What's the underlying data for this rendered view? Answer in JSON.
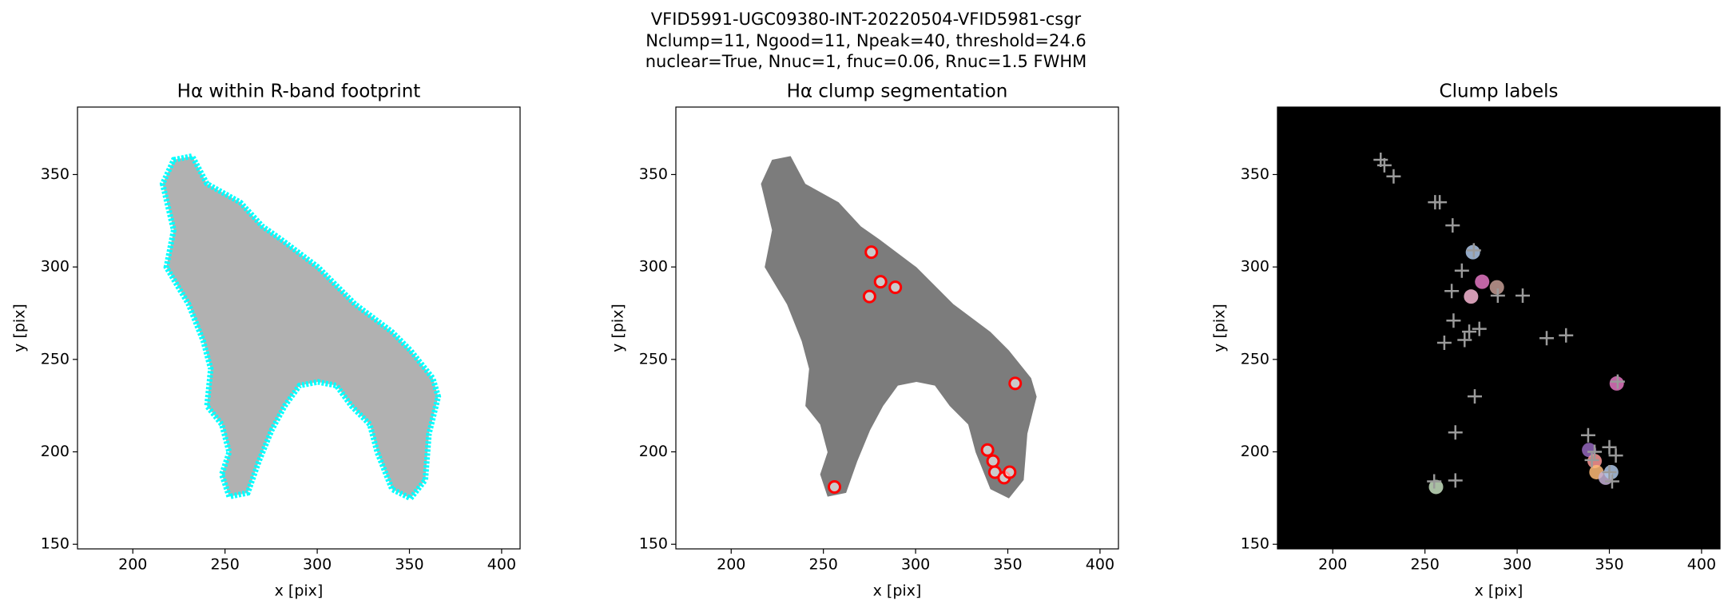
{
  "title": [
    "VFID5991-UGC09380-INT-20220504-VFID5981-csgr",
    "Nclump=11, Ngood=11, Npeak=40, threshold=24.6",
    "nuclear=True, Nnuc=1, fnuc=0.06, Rnuc=1.5 FWHM"
  ],
  "chart_data": [
    {
      "type": "image",
      "title": "Hα within R-band footprint",
      "xlabel": "x [pix]",
      "ylabel": "y [pix]",
      "xlim": [
        170,
        410
      ],
      "ylim": [
        147.5,
        386.5
      ],
      "xticks": [
        200,
        250,
        300,
        350,
        400
      ],
      "yticks": [
        150,
        200,
        250,
        300,
        350
      ],
      "image_color": "#a8a8a8",
      "footprint_color": "#00ffff",
      "background": "#ffffff"
    },
    {
      "type": "scatter",
      "title": "Hα clump segmentation",
      "xlabel": "x [pix]",
      "ylabel": "y [pix]",
      "xlim": [
        170,
        410
      ],
      "ylim": [
        147.5,
        386.5
      ],
      "xticks": [
        200,
        250,
        300,
        350,
        400
      ],
      "yticks": [
        150,
        200,
        250,
        300,
        350
      ],
      "image_color": "#6e6e6e",
      "background": "#ffffff",
      "marker_color": "#ff0000",
      "x": [
        276,
        281,
        289,
        275,
        354,
        256,
        339,
        342,
        343,
        348,
        351
      ],
      "y": [
        308,
        292,
        289,
        284,
        237,
        181,
        201,
        195,
        189,
        186,
        189
      ]
    },
    {
      "type": "labels",
      "title": "Clump labels",
      "xlabel": "x [pix]",
      "ylabel": "y [pix]",
      "xlim": [
        170,
        410
      ],
      "ylim": [
        147.5,
        386.5
      ],
      "xticks": [
        200,
        250,
        300,
        350,
        400
      ],
      "yticks": [
        150,
        200,
        250,
        300,
        350
      ],
      "background": "#000000",
      "marker_color": "#9a9a9a",
      "clumps": {
        "x": [
          276,
          281,
          289,
          275,
          354,
          256,
          339,
          342,
          343,
          348,
          351
        ],
        "y": [
          308,
          292,
          289,
          284,
          237,
          181,
          201,
          195,
          189,
          186,
          189
        ],
        "colors": [
          "#aec7e8",
          "#e377c2",
          "#c49c94",
          "#f7b6d2",
          "#e377c2",
          "#c7e0c0",
          "#9467bd",
          "#ff9896",
          "#ffbb78",
          "#c5b0d5",
          "#aec7e8"
        ]
      },
      "x": [
        226,
        228,
        233,
        255.5,
        258,
        265,
        276.5,
        270,
        264.5,
        289.5,
        303,
        265.5,
        260.5,
        271.5,
        279.5,
        274,
        316,
        326.5,
        277,
        266.5,
        266.5,
        338.5,
        350,
        353.5,
        350,
        351.5,
        340.5,
        255,
        342,
        354.5
      ],
      "y": [
        358,
        355,
        349,
        335,
        335,
        322.5,
        309,
        298,
        287,
        284.5,
        284.5,
        271,
        259,
        260.5,
        266.5,
        265,
        261.5,
        263,
        230,
        210.5,
        184.5,
        209,
        202.5,
        198,
        189,
        184,
        195.5,
        184,
        200,
        238
      ]
    }
  ]
}
